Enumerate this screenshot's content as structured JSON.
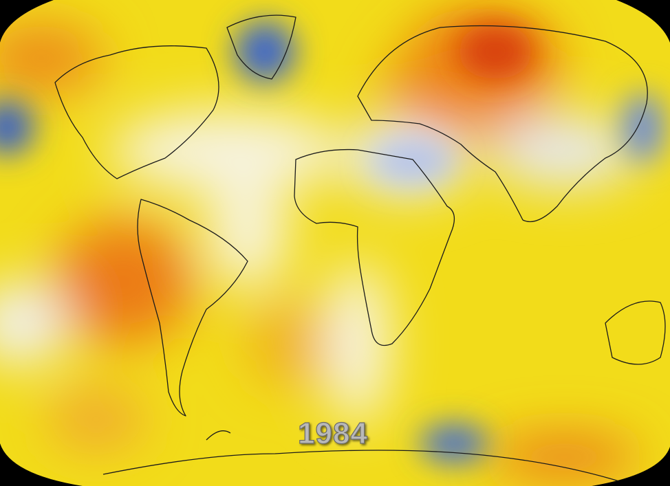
{
  "map": {
    "year_label": "1984"
  }
}
